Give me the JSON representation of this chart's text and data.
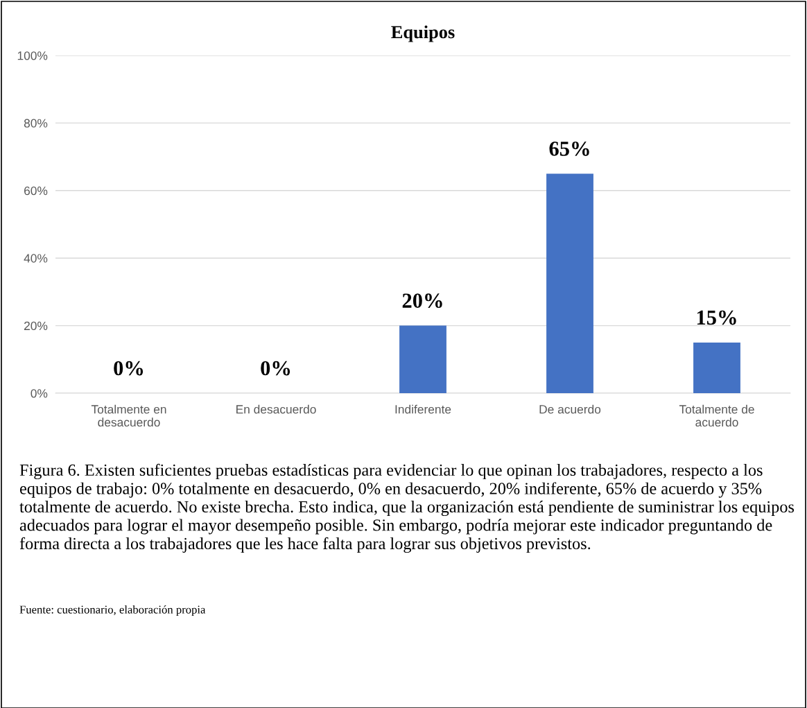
{
  "chart_data": {
    "type": "bar",
    "title": "Equipos",
    "categories": [
      "Totalmente en\ndesacuerdo",
      "En desacuerdo",
      "Indiferente",
      "De acuerdo",
      "Totalmente de\nacuerdo"
    ],
    "values": [
      0,
      0,
      20,
      65,
      15
    ],
    "color": "#4472c4",
    "ylim": [
      0,
      100
    ],
    "yticks": [
      {
        "value": 0,
        "label": "0%"
      },
      {
        "value": 20,
        "label": "20%"
      },
      {
        "value": 40,
        "label": "40%"
      },
      {
        "value": 60,
        "label": "60%"
      },
      {
        "value": 80,
        "label": "80%"
      },
      {
        "value": 100,
        "label": "100%"
      }
    ],
    "grid": "y",
    "legend": false,
    "value_labels": [
      "0%",
      "0%",
      "20%",
      "65%",
      "15%"
    ],
    "annotations": [
      "Figura 6. Existen suficientes pruebas estadísticas para evidenciar lo que opinan los trabajadores, respecto a los equipos de trabajo: 0% totalmente en desacuerdo, 0% en desacuerdo, 20% indiferente, 65% de acuerdo y 35% totalmente de acuerdo. No existe brecha. Esto indica, que la organización está pendiente de suministrar los equipos adecuados para lograr el mayor desempeño posible. Sin embargo, podría mejorar este indicador preguntando de forma directa a los trabajadores que les hace falta para lograr sus objetivos previstos.",
      "Fuente: cuestionario, elaboración propia"
    ]
  }
}
